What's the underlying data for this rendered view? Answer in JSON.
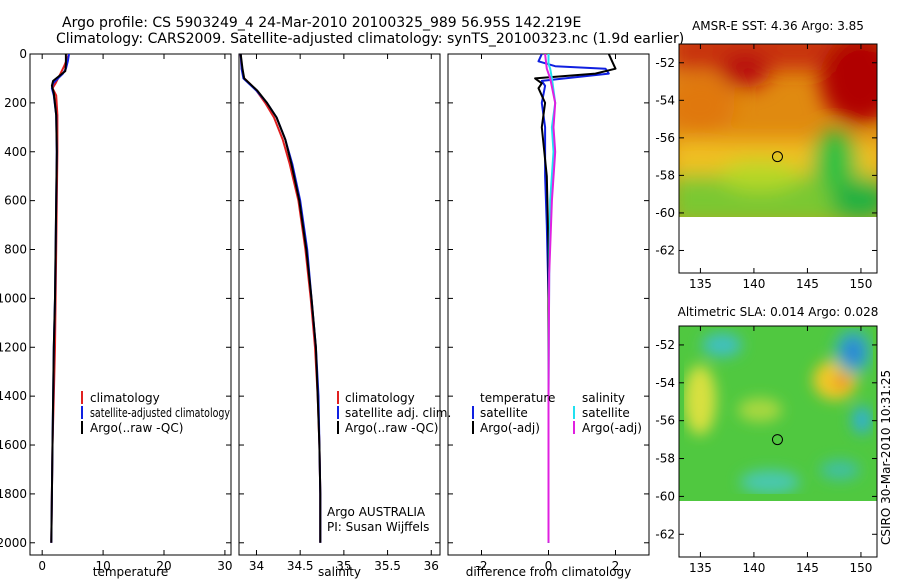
{
  "header": {
    "line1": "Argo profile: CS 5903249_4 24-Mar-2010 20100325_989 56.95S 142.219E",
    "line2": "Climatology: CARS2009. Satellite-adjusted climatology: synTS_20100323.nc (1.9d earlier)"
  },
  "footer": {
    "stamp": "CSIRO 30-Mar-2010 10:31:25",
    "argo_credit": "Argo AUSTRALIA",
    "pi_credit": "PI: Susan Wijffels"
  },
  "colors": {
    "climatology": "#e02020",
    "satellite": "#1020e0",
    "argo": "#000000",
    "salinity_satellite": "#20e0f0",
    "salinity_argo": "#e020e0"
  },
  "chart_data": [
    {
      "type": "line",
      "name": "temperature",
      "xlabel": "temperature",
      "ylabel": "",
      "xlim": [
        -2,
        31
      ],
      "ylim": [
        2050,
        0
      ],
      "xticks": [
        0,
        10,
        20,
        30
      ],
      "yticks": [
        0,
        200,
        400,
        600,
        800,
        1000,
        1200,
        1400,
        1600,
        1800,
        2000
      ],
      "legend": {
        "position": "lower-right",
        "entries": [
          "climatology",
          "satellite-adjusted climatology",
          "Argo(..raw -QC)"
        ]
      },
      "series": [
        {
          "name": "climatology",
          "color_key": "climatology",
          "x": [
            4.4,
            3.6,
            3.0,
            2.6,
            2.2,
            1.7,
            2.3,
            2.5,
            2.5,
            2.4,
            2.3,
            2.2,
            2.1,
            1.9,
            1.7,
            1.6,
            1.5
          ],
          "y": [
            0,
            50,
            80,
            100,
            120,
            140,
            170,
            250,
            400,
            600,
            800,
            1000,
            1200,
            1400,
            1600,
            1800,
            2000
          ]
        },
        {
          "name": "satellite-adjusted climatology",
          "color_key": "satellite",
          "x": [
            4.4,
            4.2,
            3.9,
            3.4,
            2.6,
            1.8,
            1.6,
            1.9,
            2.3,
            2.4,
            2.3,
            2.2,
            2.1,
            1.9,
            1.7,
            1.6,
            1.5
          ],
          "y": [
            0,
            30,
            60,
            80,
            100,
            120,
            140,
            170,
            250,
            400,
            600,
            800,
            1000,
            1200,
            1600,
            1800,
            2000
          ]
        },
        {
          "name": "Argo(..raw -QC)",
          "color_key": "argo",
          "x": [
            3.9,
            3.9,
            3.8,
            2.8,
            1.8,
            1.6,
            1.9,
            2.3,
            2.4,
            2.3,
            2.2,
            2.1,
            1.9,
            1.7,
            1.6,
            1.5
          ],
          "y": [
            0,
            40,
            70,
            90,
            110,
            130,
            160,
            250,
            400,
            600,
            800,
            1000,
            1200,
            1600,
            1800,
            2000
          ]
        }
      ]
    },
    {
      "type": "line",
      "name": "salinity",
      "xlabel": "salinity",
      "ylabel": "",
      "xlim": [
        33.8,
        36.1
      ],
      "ylim": [
        2050,
        0
      ],
      "xticks": [
        34,
        34.5,
        35,
        35.5,
        36
      ],
      "legend": {
        "position": "lower-right",
        "entries": [
          "climatology",
          "satellite adj. clim.",
          "Argo(..raw -QC)"
        ]
      },
      "series": [
        {
          "name": "climatology",
          "color_key": "climatology",
          "x": [
            33.82,
            33.83,
            33.86,
            33.92,
            34.0,
            34.1,
            34.2,
            34.3,
            34.38,
            34.48,
            34.56,
            34.62,
            34.67,
            34.7,
            34.72,
            34.73,
            34.73
          ],
          "y": [
            0,
            60,
            100,
            120,
            150,
            200,
            260,
            350,
            450,
            600,
            800,
            1000,
            1200,
            1400,
            1600,
            1800,
            2000
          ]
        },
        {
          "name": "satellite adj. clim.",
          "color_key": "satellite",
          "x": [
            33.82,
            33.83,
            33.85,
            33.91,
            34.0,
            34.12,
            34.23,
            34.33,
            34.41,
            34.5,
            34.58,
            34.63,
            34.68,
            34.71,
            34.72,
            34.73,
            34.73
          ],
          "y": [
            0,
            60,
            100,
            120,
            150,
            200,
            260,
            350,
            450,
            600,
            800,
            1000,
            1200,
            1400,
            1600,
            1800,
            2000
          ]
        },
        {
          "name": "Argo(..raw -QC)",
          "color_key": "argo",
          "x": [
            33.82,
            33.84,
            33.86,
            33.92,
            34.01,
            34.12,
            34.23,
            34.33,
            34.4,
            34.49,
            34.57,
            34.63,
            34.68,
            34.7,
            34.72,
            34.73,
            34.73
          ],
          "y": [
            0,
            60,
            100,
            120,
            150,
            200,
            260,
            350,
            450,
            600,
            800,
            1000,
            1200,
            1400,
            1600,
            1800,
            2000
          ]
        }
      ]
    },
    {
      "type": "line",
      "name": "difference",
      "xlabel": "difference from climatology",
      "ylabel": "",
      "xlim": [
        -3,
        3
      ],
      "ylim": [
        2050,
        0
      ],
      "xticks": [
        -2,
        0,
        2
      ],
      "legend": {
        "position": "lower-center",
        "temperature_title": "temperature",
        "salinity_title": "salinity",
        "temperature_entries": [
          "satellite",
          "Argo(-adj)"
        ],
        "salinity_entries": [
          "satellite",
          "Argo(-adj)"
        ]
      },
      "series": [
        {
          "name": "temperature satellite",
          "color_key": "satellite",
          "x": [
            -0.2,
            -0.3,
            0.2,
            1.7,
            1.8,
            -0.2,
            -0.1,
            -0.2,
            -0.1,
            -0.1,
            -0.05,
            0,
            0,
            0,
            0
          ],
          "y": [
            0,
            30,
            50,
            60,
            80,
            110,
            130,
            200,
            300,
            500,
            700,
            1000,
            1400,
            1800,
            2000
          ]
        },
        {
          "name": "temperature Argo(-adj)",
          "color_key": "argo",
          "x": [
            1.8,
            1.9,
            2.0,
            1.4,
            -0.4,
            -0.2,
            -0.3,
            -0.1,
            -0.2,
            -0.05,
            0,
            0,
            0
          ],
          "y": [
            0,
            30,
            60,
            80,
            100,
            120,
            140,
            200,
            300,
            500,
            800,
            1400,
            2000
          ]
        },
        {
          "name": "salinity satellite",
          "color_key": "salinity_satellite",
          "x": [
            0,
            0,
            0.05,
            0.1,
            0.2,
            0.1,
            0.15,
            0.05,
            0.02,
            0,
            0
          ],
          "y": [
            0,
            40,
            60,
            100,
            200,
            300,
            400,
            600,
            900,
            1400,
            2000
          ]
        },
        {
          "name": "salinity Argo(-adj)",
          "color_key": "salinity_argo",
          "x": [
            -0.1,
            -0.05,
            0.05,
            0.2,
            0.15,
            0.2,
            0.1,
            0.02,
            0,
            0
          ],
          "y": [
            0,
            60,
            100,
            200,
            300,
            400,
            600,
            900,
            1400,
            2000
          ]
        }
      ]
    },
    {
      "type": "heatmap",
      "name": "sst_map",
      "title": "AMSR-E SST: 4.36 Argo: 3.85",
      "xlim": [
        133,
        151.5
      ],
      "ylim": [
        -63.2,
        -51
      ],
      "xticks": [
        135,
        140,
        145,
        150
      ],
      "yticks": [
        -52,
        -54,
        -56,
        -58,
        -60,
        -62
      ],
      "data_lat_range": [
        -60,
        -51
      ],
      "marker": {
        "lon": 142.2,
        "lat": -57
      }
    },
    {
      "type": "heatmap",
      "name": "sla_map",
      "title": "Altimetric SLA: 0.014 Argo: 0.028",
      "xlim": [
        133,
        151.5
      ],
      "ylim": [
        -63.2,
        -51
      ],
      "xticks": [
        135,
        140,
        145,
        150
      ],
      "yticks": [
        -52,
        -54,
        -56,
        -58,
        -60,
        -62
      ],
      "data_lat_range": [
        -60,
        -51
      ],
      "marker": {
        "lon": 142.2,
        "lat": -57
      }
    }
  ]
}
